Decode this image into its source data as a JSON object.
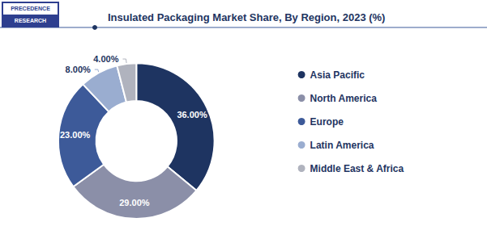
{
  "chart_data": {
    "type": "pie",
    "title": "Insulated Packaging Market Share, By Region, 2023 (%)",
    "categories": [
      "Asia Pacific",
      "North America",
      "Europe",
      "Latin America",
      "Middle East & Africa"
    ],
    "values": [
      36.0,
      29.0,
      23.0,
      8.0,
      4.0
    ],
    "value_labels": [
      "36.00%",
      "29.00%",
      "23.00%",
      "8.00%",
      "4.00%"
    ],
    "colors": [
      "#1e3461",
      "#8b8fa8",
      "#3d5a99",
      "#9aadd0",
      "#b0b3be"
    ],
    "data_labels": true,
    "legend": "right",
    "annotations": [
      "PRECEDENCE",
      "RESEARCH"
    ]
  }
}
